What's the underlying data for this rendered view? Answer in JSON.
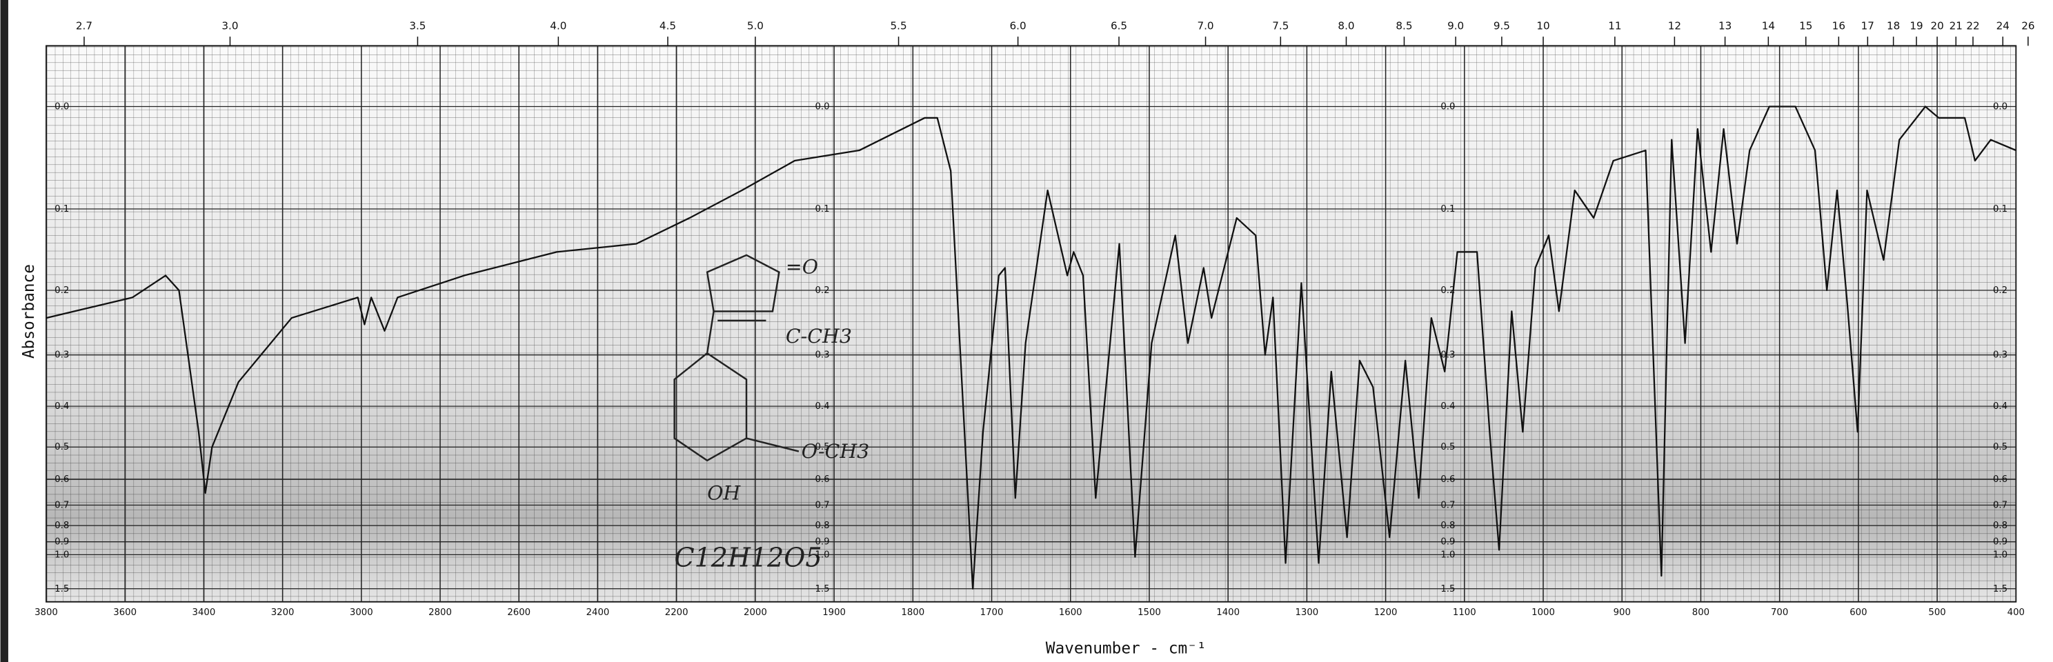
{
  "chart_data": {
    "type": "line",
    "x_label": "Wavenumber - cm⁻¹",
    "y_label": "Absorbance",
    "xlim": [
      3800,
      400
    ],
    "ylim": [
      -0.05,
      1.5
    ],
    "yscale": "linear-transmittance",
    "grid": true,
    "color": "#111111",
    "xticks": [
      3800,
      3600,
      3400,
      3200,
      3000,
      2800,
      2600,
      2400,
      2200,
      2000,
      1900,
      1800,
      1700,
      1600,
      1500,
      1400,
      1300,
      1200,
      1100,
      1000,
      900,
      800,
      700,
      600,
      500,
      400
    ],
    "yticks": [
      {
        "value": 0,
        "label": "0.0"
      },
      0.1,
      0.2,
      0.3,
      0.4,
      0.5,
      0.6,
      0.7,
      0.8,
      0.9,
      {
        "value": 1,
        "label": "1.0"
      },
      1.5
    ],
    "top_ticks_micron": [
      2.7,
      {
        "value": 3,
        "label": "3.0"
      },
      3.5,
      {
        "value": 4,
        "label": "4.0"
      },
      4.5,
      {
        "value": 5,
        "label": "5.0"
      },
      5.5,
      {
        "value": 6,
        "label": "6.0"
      },
      6.5,
      {
        "value": 7,
        "label": "7.0"
      },
      7.5,
      {
        "value": 8,
        "label": "8.0"
      },
      8.5,
      {
        "value": 9,
        "label": "9.0"
      },
      9.5,
      10,
      11,
      12,
      13,
      14,
      15,
      16,
      17,
      18,
      19,
      20,
      21,
      22,
      24,
      26
    ],
    "annotations": [
      "=O",
      "C-CH3",
      "O-CH3",
      "OH",
      "C12H12O5"
    ],
    "x": [
      3800,
      3581,
      3497,
      3463,
      3413,
      3396,
      3379,
      3312,
      3177,
      3009,
      2992,
      2975,
      2941,
      2908,
      2739,
      2504,
      2302,
      2167,
      2034,
      1950,
      1868,
      1785,
      1769,
      1752,
      1724,
      1711,
      1691,
      1683,
      1670,
      1657,
      1629,
      1604,
      1596,
      1584,
      1568,
      1538,
      1518,
      1497,
      1467,
      1451,
      1431,
      1421,
      1389,
      1365,
      1353,
      1343,
      1327,
      1307,
      1285,
      1269,
      1249,
      1233,
      1216,
      1195,
      1175,
      1158,
      1142,
      1125,
      1109,
      1084,
      1068,
      1056,
      1040,
      1026,
      1010,
      993,
      980,
      960,
      936,
      911,
      870,
      850,
      837,
      820,
      804,
      787,
      771,
      754,
      738,
      713,
      680,
      655,
      640,
      627,
      614,
      601,
      589,
      568,
      548,
      515,
      498,
      465,
      452,
      432,
      400
    ],
    "values": [
      0.24,
      0.21,
      0.18,
      0.2,
      0.46,
      0.65,
      0.5,
      0.35,
      0.24,
      0.21,
      0.25,
      0.21,
      0.26,
      0.21,
      0.18,
      0.15,
      0.14,
      0.11,
      0.08,
      0.05,
      0.04,
      0.01,
      0.01,
      0.06,
      1.5,
      0.46,
      0.18,
      0.17,
      0.67,
      0.28,
      0.08,
      0.18,
      0.15,
      0.18,
      0.67,
      0.14,
      1.02,
      0.28,
      0.13,
      0.28,
      0.17,
      0.24,
      0.11,
      0.13,
      0.3,
      0.21,
      1.08,
      0.19,
      1.08,
      0.33,
      0.87,
      0.31,
      0.36,
      0.87,
      0.31,
      0.67,
      0.24,
      0.33,
      0.15,
      0.15,
      0.46,
      0.96,
      0.23,
      0.46,
      0.17,
      0.13,
      0.23,
      0.08,
      0.11,
      0.05,
      0.04,
      1.24,
      0.03,
      0.28,
      0.02,
      0.15,
      0.02,
      0.14,
      0.04,
      0,
      0,
      0.04,
      0.2,
      0.08,
      0.22,
      0.46,
      0.08,
      0.16,
      0.03,
      0,
      0.01,
      0.01,
      0.05,
      0.03,
      0.04
    ]
  }
}
